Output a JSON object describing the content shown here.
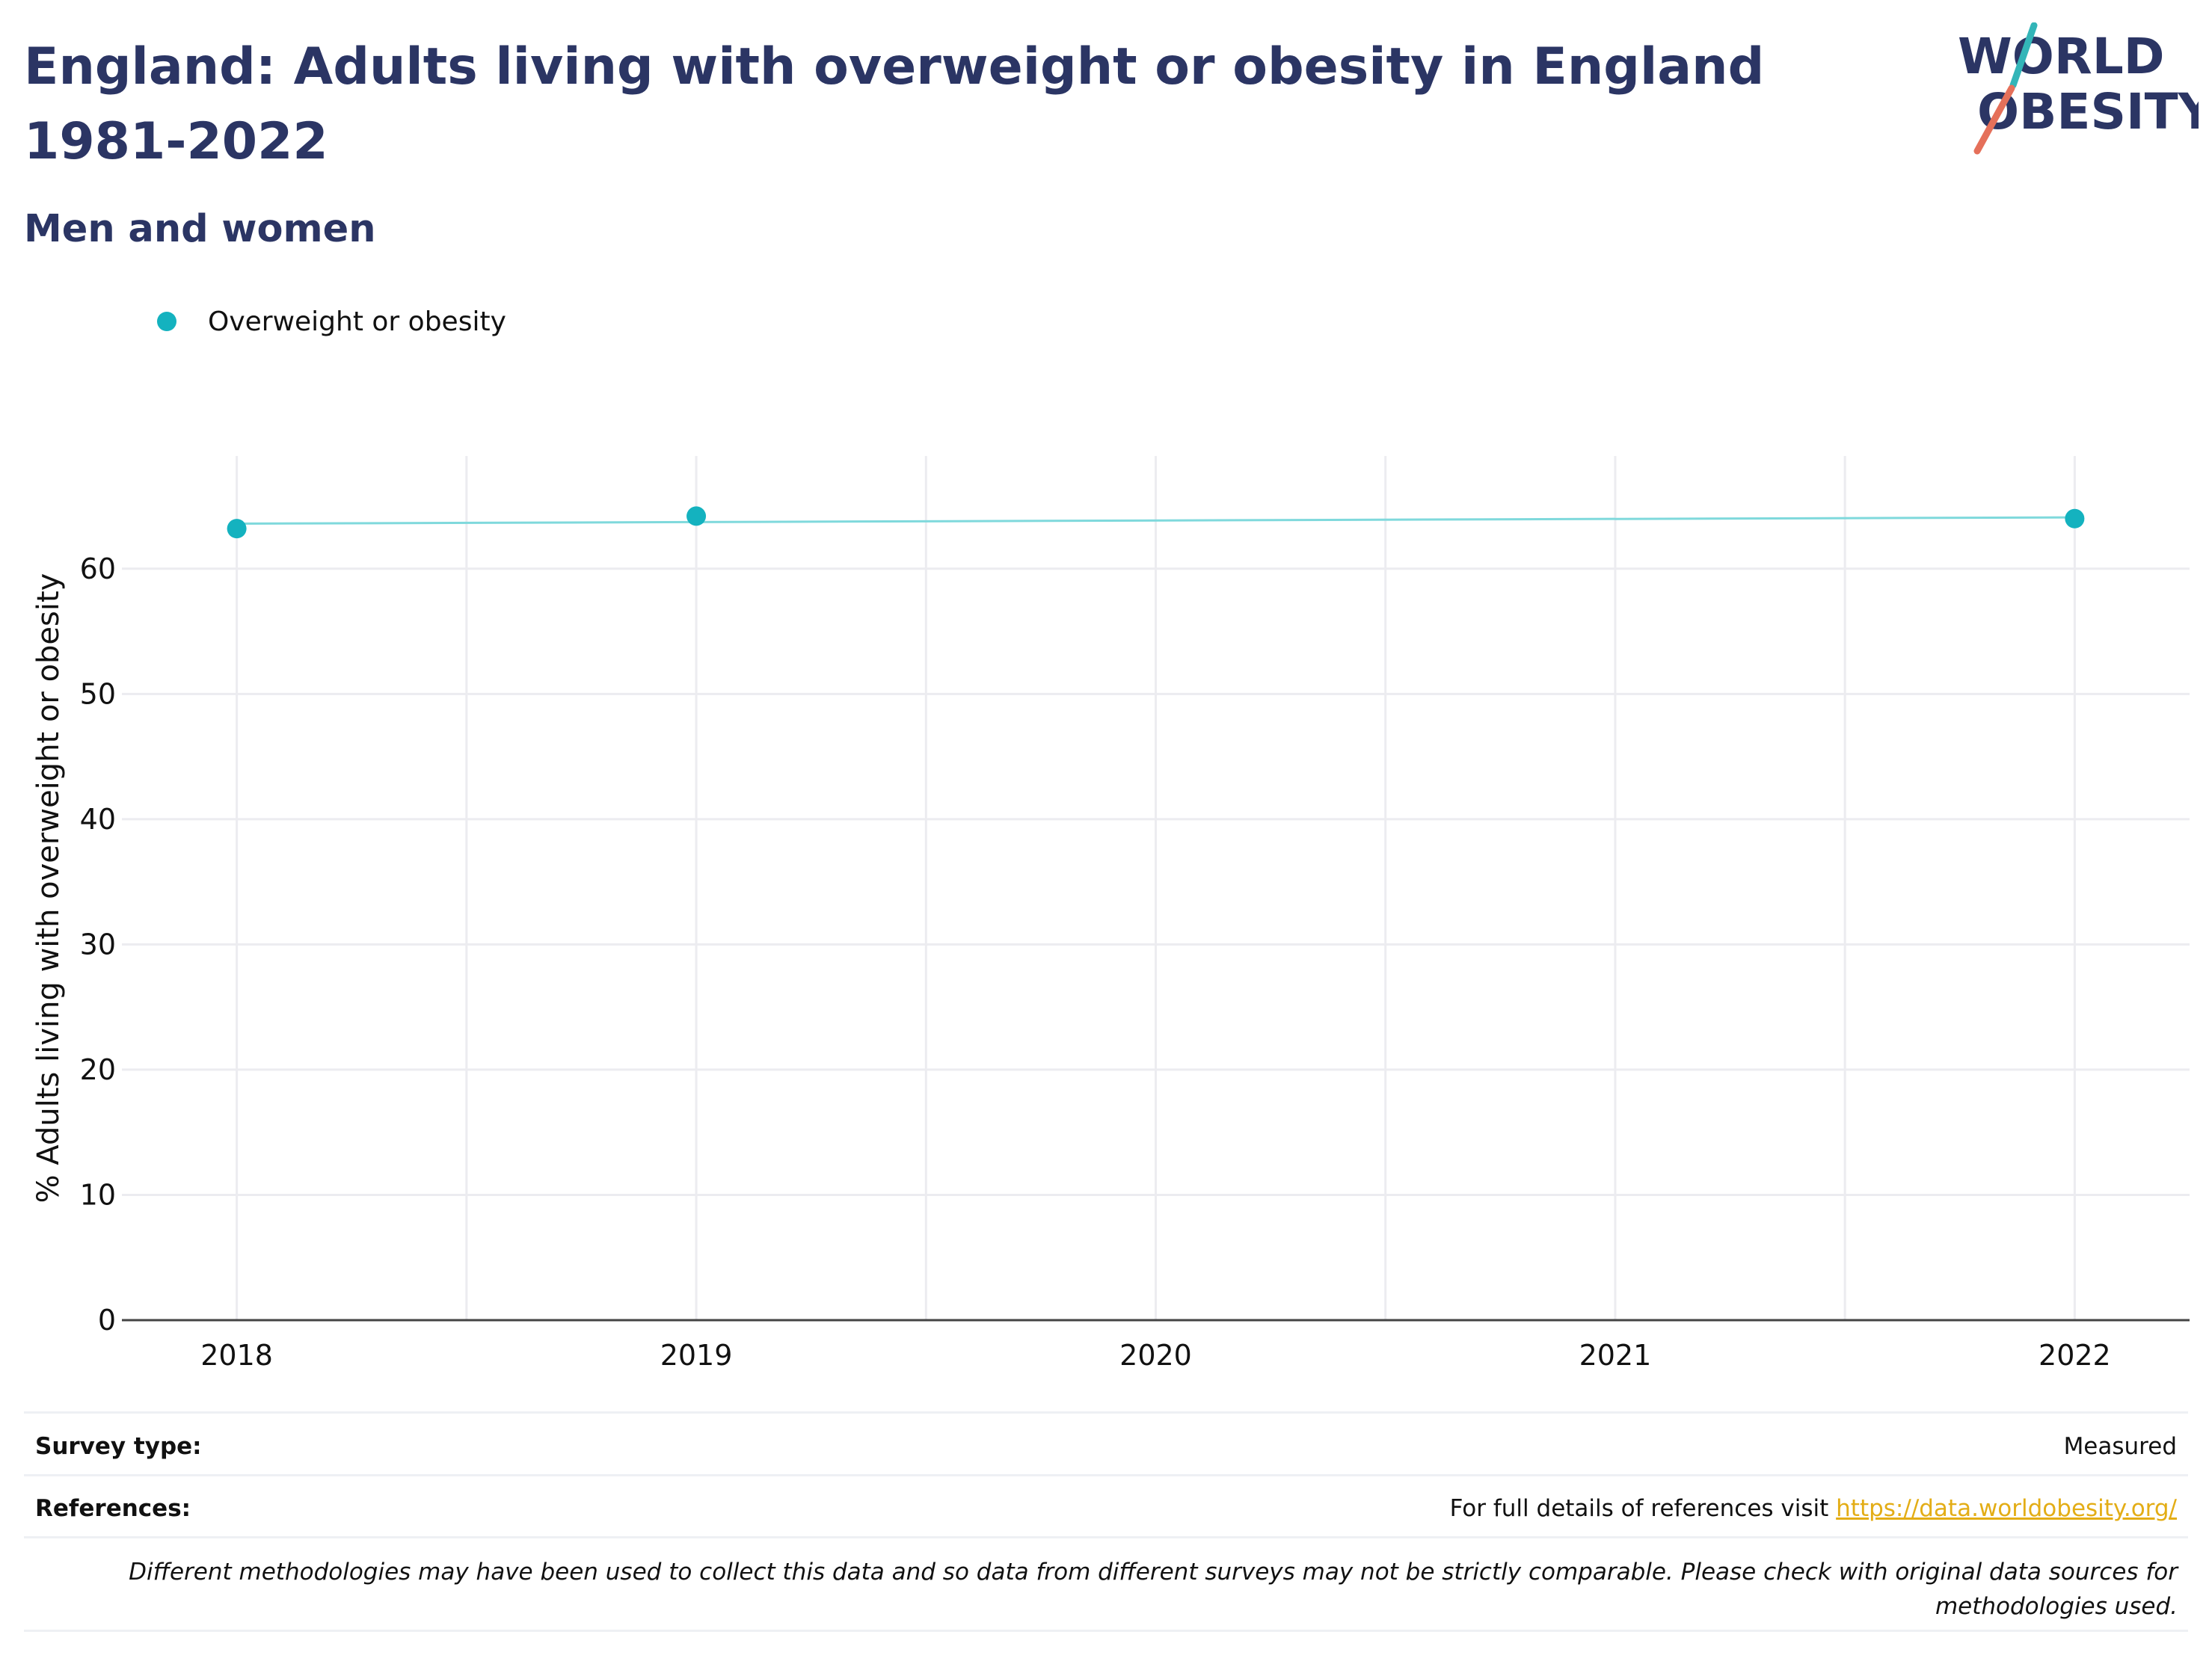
{
  "header": {
    "title": "England: Adults living with overweight or obesity in England 1981-2022",
    "subtitle": "Men and women"
  },
  "logo": {
    "line1": "WORLD",
    "line2": "OBESITY"
  },
  "colors": {
    "title": "#2b3564",
    "series": "#14b2bf",
    "series_line": "#7fd9dc",
    "grid": "#ececf0",
    "axis": "#444444",
    "link": "#e3ad16",
    "logo_teal": "#33b5b8",
    "logo_coral": "#e5705a"
  },
  "chart_data": {
    "type": "line",
    "x": [
      2018,
      2019,
      2022
    ],
    "xticks": [
      "2018",
      "2019",
      "2020",
      "2021",
      "2022"
    ],
    "xlim": [
      2017.75,
      2022.25
    ],
    "ylim": [
      0,
      69
    ],
    "yticks": [
      0,
      10,
      20,
      30,
      40,
      50,
      60
    ],
    "ylabel": "% Adults living with overweight or obesity",
    "xlabel": "",
    "trend": {
      "x": [
        2018,
        2022
      ],
      "y": [
        63.6,
        64.1
      ]
    },
    "grid": true,
    "legend_position": "top-left",
    "series": [
      {
        "name": "Overweight or obesity",
        "values": [
          63.2,
          64.2,
          64.0
        ]
      }
    ]
  },
  "footer": {
    "survey_type_label": "Survey type:",
    "survey_type_value": "Measured",
    "references_label": "References:",
    "references_text": "For full details of references visit",
    "references_link": "https://data.worldobesity.org/",
    "disclaimer": "Different methodologies may have been used to collect this data and so data from different surveys may not be strictly comparable. Please check with original data sources for methodologies used."
  }
}
